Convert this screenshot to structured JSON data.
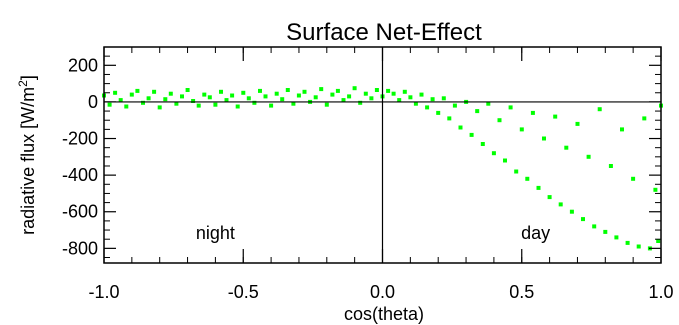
{
  "chart_data": {
    "type": "scatter",
    "title": "Surface Net-Effect",
    "xlabel": "cos(theta)",
    "ylabel_prefix": "radiative flux [W/m",
    "ylabel_sup": "2",
    "ylabel_suffix": "]",
    "xlim": [
      -1.0,
      1.0
    ],
    "ylim": [
      -880,
      300
    ],
    "xticks": [
      -1.0,
      -0.5,
      0.0,
      0.5,
      1.0
    ],
    "xtick_labels": [
      "-1.0",
      "-0.5",
      "0.0",
      "0.5",
      "1.0"
    ],
    "yticks": [
      -800,
      -600,
      -400,
      -200,
      0,
      200
    ],
    "ytick_labels": [
      "-800",
      "-600",
      "-400",
      "-200",
      "0",
      "200"
    ],
    "grid": false,
    "annotations": [
      {
        "text": "night",
        "x": -0.6,
        "y": -750
      },
      {
        "text": "day",
        "x": 0.55,
        "y": -750
      }
    ],
    "reference_lines": [
      {
        "orientation": "horizontal",
        "value": 0
      },
      {
        "orientation": "vertical",
        "value": 0
      }
    ],
    "colors": {
      "points": "#00ff00",
      "axes": "#000000"
    },
    "series": [
      {
        "values": [
          [
            -1.0,
            35
          ],
          [
            -0.98,
            -15
          ],
          [
            -0.96,
            50
          ],
          [
            -0.94,
            10
          ],
          [
            -0.92,
            -25
          ],
          [
            -0.9,
            40
          ],
          [
            -0.88,
            60
          ],
          [
            -0.86,
            -5
          ],
          [
            -0.84,
            20
          ],
          [
            -0.82,
            55
          ],
          [
            -0.8,
            -30
          ],
          [
            -0.78,
            15
          ],
          [
            -0.76,
            45
          ],
          [
            -0.74,
            -10
          ],
          [
            -0.72,
            30
          ],
          [
            -0.7,
            65
          ],
          [
            -0.68,
            5
          ],
          [
            -0.66,
            -20
          ],
          [
            -0.64,
            40
          ],
          [
            -0.62,
            25
          ],
          [
            -0.6,
            -15
          ],
          [
            -0.58,
            55
          ],
          [
            -0.56,
            10
          ],
          [
            -0.54,
            35
          ],
          [
            -0.52,
            -25
          ],
          [
            -0.5,
            50
          ],
          [
            -0.48,
            20
          ],
          [
            -0.46,
            -5
          ],
          [
            -0.44,
            60
          ],
          [
            -0.42,
            30
          ],
          [
            -0.4,
            -20
          ],
          [
            -0.38,
            45
          ],
          [
            -0.36,
            15
          ],
          [
            -0.34,
            65
          ],
          [
            -0.32,
            -10
          ],
          [
            -0.3,
            35
          ],
          [
            -0.28,
            55
          ],
          [
            -0.26,
            0
          ],
          [
            -0.24,
            25
          ],
          [
            -0.22,
            70
          ],
          [
            -0.2,
            -15
          ],
          [
            -0.18,
            40
          ],
          [
            -0.16,
            60
          ],
          [
            -0.14,
            10
          ],
          [
            -0.12,
            30
          ],
          [
            -0.1,
            75
          ],
          [
            -0.08,
            -5
          ],
          [
            -0.06,
            45
          ],
          [
            -0.04,
            20
          ],
          [
            -0.02,
            65
          ],
          [
            0.0,
            30
          ],
          [
            0.02,
            60
          ],
          [
            0.04,
            45
          ],
          [
            0.06,
            10
          ],
          [
            0.08,
            55
          ],
          [
            0.1,
            25
          ],
          [
            0.12,
            -10
          ],
          [
            0.14,
            40
          ],
          [
            0.16,
            -30
          ],
          [
            0.18,
            15
          ],
          [
            0.2,
            -60
          ],
          [
            0.22,
            20
          ],
          [
            0.24,
            -90
          ],
          [
            0.26,
            -20
          ],
          [
            0.28,
            -140
          ],
          [
            0.3,
            0
          ],
          [
            0.32,
            -180
          ],
          [
            0.34,
            -50
          ],
          [
            0.36,
            -230
          ],
          [
            0.38,
            -10
          ],
          [
            0.4,
            -280
          ],
          [
            0.42,
            -100
          ],
          [
            0.44,
            -320
          ],
          [
            0.46,
            -30
          ],
          [
            0.48,
            -380
          ],
          [
            0.5,
            -150
          ],
          [
            0.52,
            -420
          ],
          [
            0.54,
            -60
          ],
          [
            0.56,
            -470
          ],
          [
            0.58,
            -200
          ],
          [
            0.6,
            -520
          ],
          [
            0.62,
            -80
          ],
          [
            0.64,
            -560
          ],
          [
            0.66,
            -250
          ],
          [
            0.68,
            -600
          ],
          [
            0.7,
            -120
          ],
          [
            0.72,
            -640
          ],
          [
            0.74,
            -300
          ],
          [
            0.76,
            -680
          ],
          [
            0.78,
            -40
          ],
          [
            0.8,
            -710
          ],
          [
            0.82,
            -350
          ],
          [
            0.84,
            -740
          ],
          [
            0.86,
            -150
          ],
          [
            0.88,
            -770
          ],
          [
            0.9,
            -420
          ],
          [
            0.92,
            -790
          ],
          [
            0.94,
            -90
          ],
          [
            0.96,
            -800
          ],
          [
            0.98,
            -480
          ],
          [
            0.99,
            -760
          ],
          [
            1.0,
            -20
          ]
        ]
      }
    ]
  }
}
